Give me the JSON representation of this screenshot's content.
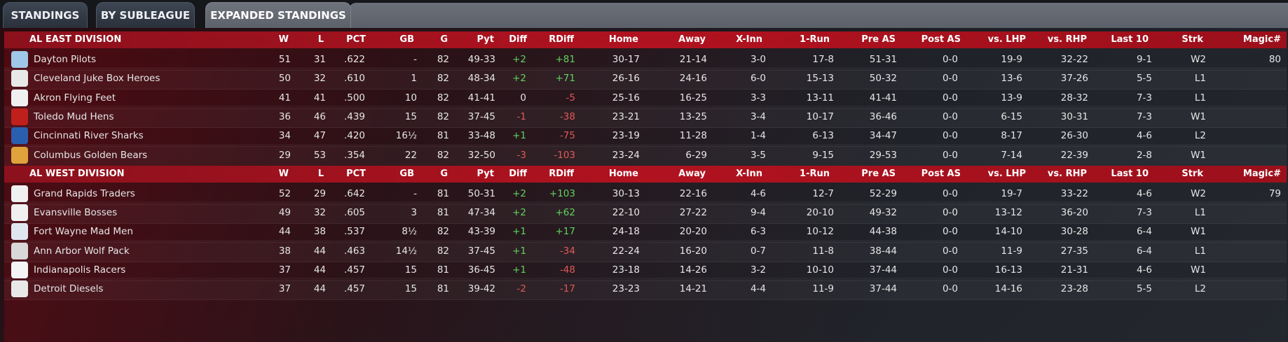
{
  "tabs": [
    "STANDINGS",
    "BY SUBLEAGUE",
    "EXPANDED STANDINGS"
  ],
  "columns": [
    "W",
    "L",
    "PCT",
    "GB",
    "G",
    "Pyt",
    "Diff",
    "RDiff",
    "Home",
    "Away",
    "X-Inn",
    "1-Run",
    "Pre AS",
    "Post AS",
    "vs. LHP",
    "vs. RHP",
    "Last 10",
    "Strk",
    "Magic#"
  ],
  "divisions": [
    {
      "name": "AL EAST DIVISION",
      "teams": [
        {
          "name": "Dayton Pilots",
          "logo": "pilots-logo",
          "logo_color": "#9fc7e8",
          "values": [
            "51",
            "31",
            ".622",
            "-",
            "82",
            "49-33",
            "+2",
            "+81",
            "30-17",
            "21-14",
            "3-0",
            "17-8",
            "51-31",
            "0-0",
            "19-9",
            "32-22",
            "9-1",
            "W2",
            "80"
          ]
        },
        {
          "name": "Cleveland Juke Box Heroes",
          "logo": "jukebox-logo",
          "logo_color": "#e8e8e8",
          "values": [
            "50",
            "32",
            ".610",
            "1",
            "82",
            "48-34",
            "+2",
            "+71",
            "26-16",
            "24-16",
            "6-0",
            "15-13",
            "50-32",
            "0-0",
            "13-6",
            "37-26",
            "5-5",
            "L1",
            ""
          ]
        },
        {
          "name": "Akron  Flying Feet",
          "logo": "akron-logo",
          "logo_color": "#f0f0f0",
          "values": [
            "41",
            "41",
            ".500",
            "10",
            "82",
            "41-41",
            "0",
            "-5",
            "25-16",
            "16-25",
            "3-3",
            "13-11",
            "41-41",
            "0-0",
            "13-9",
            "28-32",
            "7-3",
            "L1",
            ""
          ]
        },
        {
          "name": "Toledo  Mud Hens",
          "logo": "mudhens-logo",
          "logo_color": "#c0201c",
          "values": [
            "36",
            "46",
            ".439",
            "15",
            "82",
            "37-45",
            "-1",
            "-38",
            "23-21",
            "13-25",
            "3-4",
            "10-17",
            "36-46",
            "0-0",
            "6-15",
            "30-31",
            "7-3",
            "W1",
            ""
          ]
        },
        {
          "name": "Cincinnati River Sharks",
          "logo": "sharks-logo",
          "logo_color": "#2a5fb0",
          "values": [
            "34",
            "47",
            ".420",
            "16½",
            "81",
            "33-48",
            "+1",
            "-75",
            "23-19",
            "11-28",
            "1-4",
            "6-13",
            "34-47",
            "0-0",
            "8-17",
            "26-30",
            "4-6",
            "L2",
            ""
          ]
        },
        {
          "name": "Columbus Golden Bears",
          "logo": "bears-logo",
          "logo_color": "#e0a23a",
          "values": [
            "29",
            "53",
            ".354",
            "22",
            "82",
            "32-50",
            "-3",
            "-103",
            "23-24",
            "6-29",
            "3-5",
            "9-15",
            "29-53",
            "0-0",
            "7-14",
            "22-39",
            "2-8",
            "W1",
            ""
          ]
        }
      ]
    },
    {
      "name": "AL WEST DIVISION",
      "teams": [
        {
          "name": "Grand Rapids Traders",
          "logo": "traders-logo",
          "logo_color": "#f0f0f0",
          "values": [
            "52",
            "29",
            ".642",
            "-",
            "81",
            "50-31",
            "+2",
            "+103",
            "30-13",
            "22-16",
            "4-6",
            "12-7",
            "52-29",
            "0-0",
            "19-7",
            "33-22",
            "4-6",
            "W2",
            "79"
          ]
        },
        {
          "name": "Evansville Bosses",
          "logo": "bosses-logo",
          "logo_color": "#f0f0f0",
          "values": [
            "49",
            "32",
            ".605",
            "3",
            "81",
            "47-34",
            "+2",
            "+62",
            "22-10",
            "27-22",
            "9-4",
            "20-10",
            "49-32",
            "0-0",
            "13-12",
            "36-20",
            "7-3",
            "L1",
            ""
          ]
        },
        {
          "name": "Fort Wayne Mad Men",
          "logo": "madmen-logo",
          "logo_color": "#e0e6f0",
          "values": [
            "44",
            "38",
            ".537",
            "8½",
            "82",
            "43-39",
            "+1",
            "+17",
            "24-18",
            "20-20",
            "6-3",
            "10-12",
            "44-38",
            "0-0",
            "14-10",
            "30-28",
            "6-4",
            "W1",
            ""
          ]
        },
        {
          "name": "Ann Arbor Wolf Pack",
          "logo": "wolfpack-logo",
          "logo_color": "#d8d8d8",
          "values": [
            "38",
            "44",
            ".463",
            "14½",
            "82",
            "37-45",
            "+1",
            "-34",
            "22-24",
            "16-20",
            "0-7",
            "11-8",
            "38-44",
            "0-0",
            "11-9",
            "27-35",
            "6-4",
            "L1",
            ""
          ]
        },
        {
          "name": "Indianapolis Racers",
          "logo": "racers-logo",
          "logo_color": "#f4f4f4",
          "values": [
            "37",
            "44",
            ".457",
            "15",
            "81",
            "36-45",
            "+1",
            "-48",
            "23-18",
            "14-26",
            "3-2",
            "10-10",
            "37-44",
            "0-0",
            "16-13",
            "21-31",
            "4-6",
            "W1",
            ""
          ]
        },
        {
          "name": "Detroit Diesels",
          "logo": "diesels-logo",
          "logo_color": "#e8e8e8",
          "values": [
            "37",
            "44",
            ".457",
            "15",
            "81",
            "39-42",
            "-2",
            "-17",
            "23-23",
            "14-21",
            "4-4",
            "11-9",
            "37-44",
            "0-0",
            "14-16",
            "23-28",
            "5-5",
            "L2",
            ""
          ]
        }
      ]
    }
  ]
}
